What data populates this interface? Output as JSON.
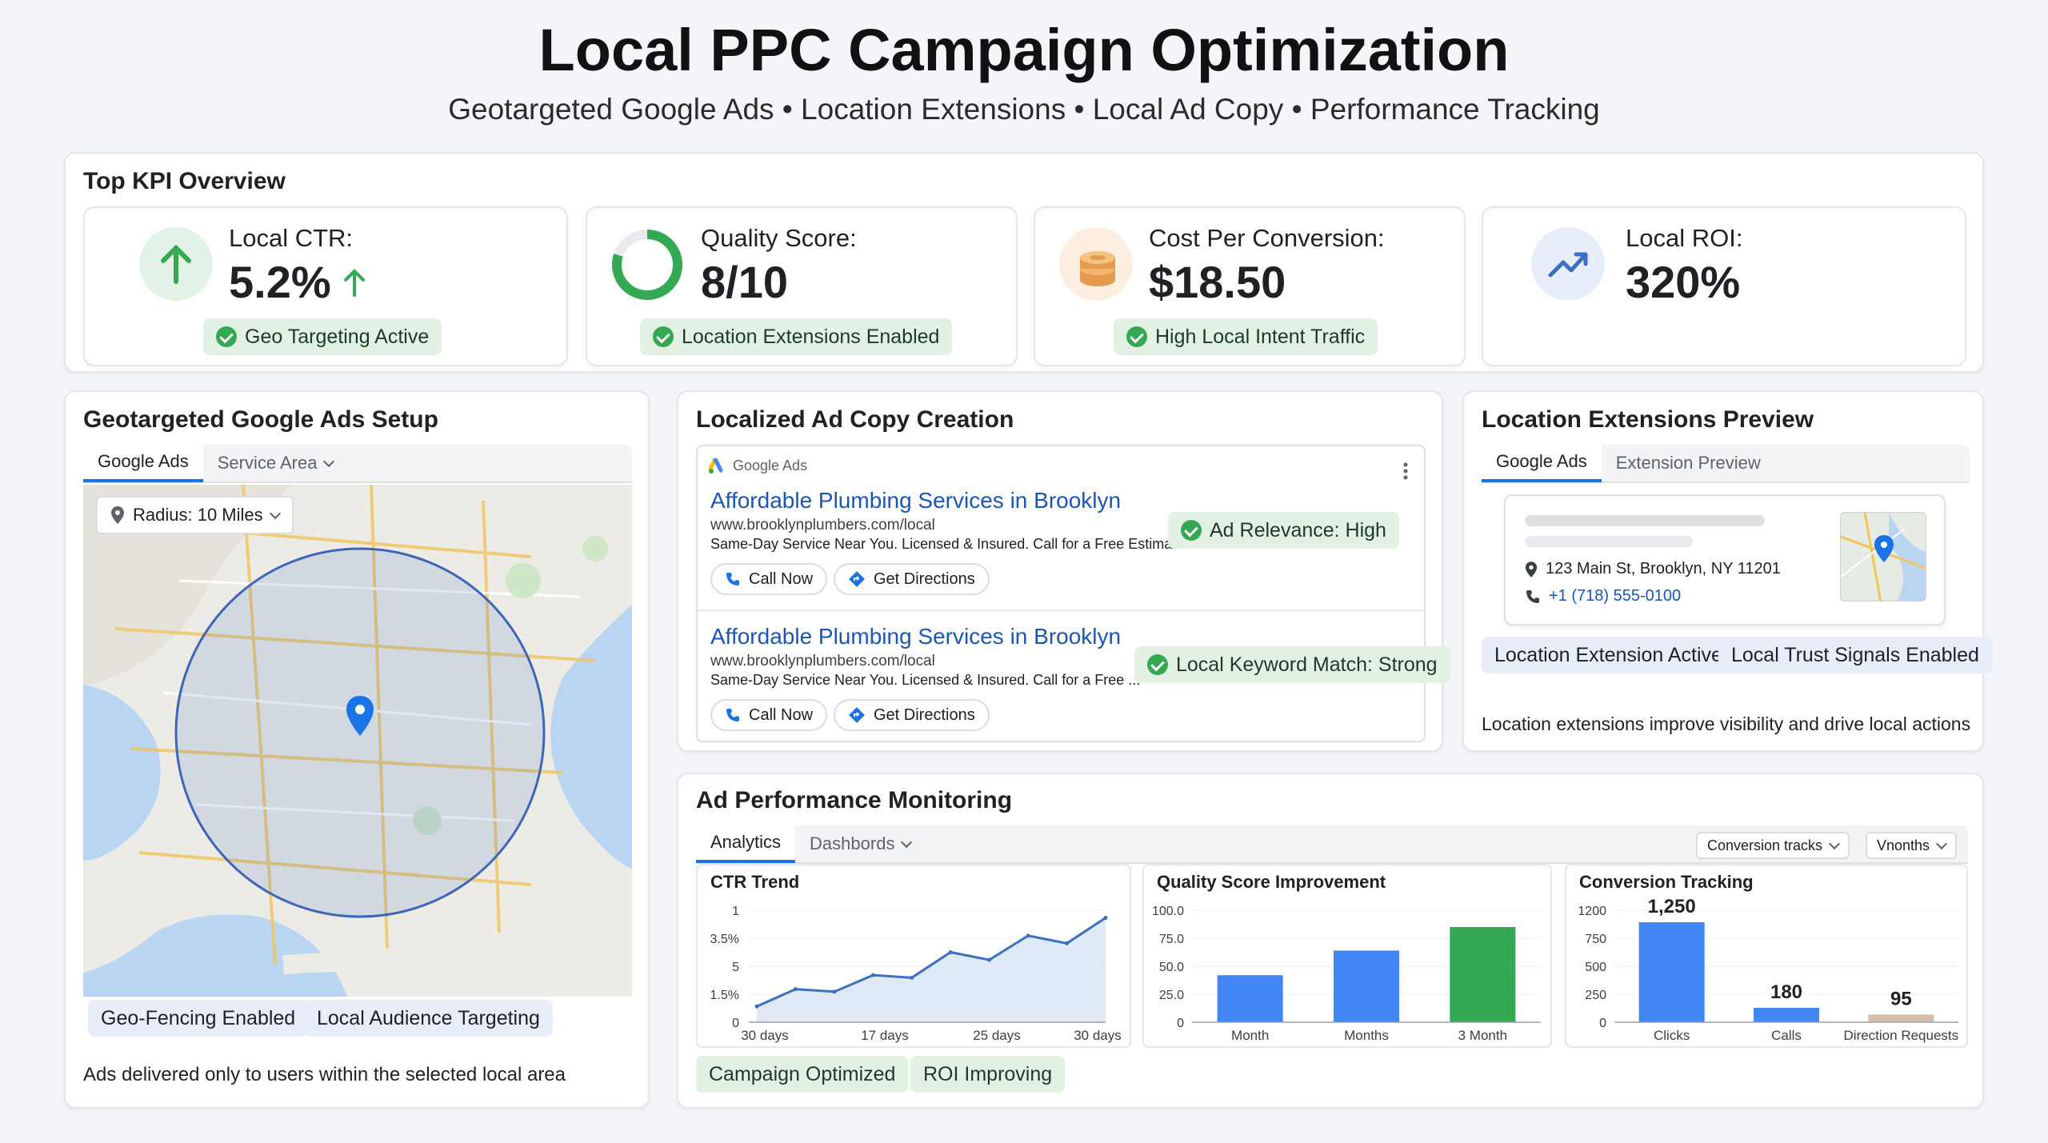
{
  "header": {
    "title": "Local PPC Campaign Optimization",
    "subtitle": "Geotargeted Google Ads • Location Extensions • Local Ad Copy • Performance Tracking"
  },
  "kpi": {
    "section_title": "Top KPI Overview",
    "cards": [
      {
        "label": "Local CTR:",
        "value": "5.2%",
        "badge": "Geo Targeting Active"
      },
      {
        "label": "Quality Score:",
        "value": "8/10",
        "badge": "Location Extensions Enabled",
        "score_fraction": 0.8
      },
      {
        "label": "Cost Per Conversion:",
        "value": "$18.50",
        "badge": "High Local Intent Traffic"
      },
      {
        "label": "Local ROI:",
        "value": "320%"
      }
    ]
  },
  "geo": {
    "title": "Geotargeted Google Ads Setup",
    "tabs": [
      "Google Ads",
      "Service Area"
    ],
    "radius_label": "Radius: 10 Miles",
    "badges": [
      "Geo-Fencing Enabled",
      "Local Audience Targeting"
    ],
    "caption": "Ads delivered only to users within the selected local area"
  },
  "adcopy": {
    "title": "Localized Ad Copy Creation",
    "brand": "Google Ads",
    "ads": [
      {
        "headline": "Affordable Plumbing Services in Brooklyn",
        "url": "www.brooklynplumbers.com/local",
        "desc": "Same-Day Service Near You. Licensed & Insured. Call for a Free Estimate!",
        "badge": "Ad Relevance: High",
        "btn1": "Call Now",
        "btn2": "Get Directions"
      },
      {
        "headline": "Affordable Plumbing Services in Brooklyn",
        "url": "www.brooklynplumbers.com/local",
        "desc": "Same-Day Service Near You. Licensed & Insured. Call for a Free ...",
        "badge": "Local Keyword Match: Strong",
        "btn1": "Call Now",
        "btn2": "Get Directions"
      }
    ]
  },
  "locext": {
    "title": "Location Extensions Preview",
    "tabs": [
      "Google Ads",
      "Extension Preview"
    ],
    "address": "123 Main St, Brooklyn, NY 11201",
    "phone": "+1 (718) 555-0100",
    "badges": [
      "Location Extension Active",
      "Local Trust Signals Enabled"
    ],
    "caption": "Location extensions improve visibility and drive local actions"
  },
  "perf": {
    "title": "Ad Performance Monitoring",
    "tabs": [
      "Analytics",
      "Dashbords"
    ],
    "filter1": "Conversion tracks",
    "filter2": "Vnonths",
    "badges": [
      "Campaign Optimized",
      "ROI Improving"
    ]
  },
  "colors": {
    "green": "#34a853",
    "blue": "#1a73e8",
    "bar_blue": "#4285f4",
    "tan": "#d4bfa8"
  },
  "chart_data": [
    {
      "type": "area",
      "title": "CTR Trend",
      "y_tick_labels": [
        "1",
        "3.5%",
        "5",
        "1.5%",
        "0"
      ],
      "x_tick_labels": [
        "30 days",
        "17 days",
        "25 days",
        "30 days"
      ],
      "values": [
        0.62,
        1.3,
        1.2,
        1.85,
        1.75,
        2.75,
        2.45,
        3.4,
        3.1,
        4.1
      ]
    },
    {
      "type": "bar",
      "title": "Quality Score Improvement",
      "categories": [
        "Month",
        "Months",
        "3 Month"
      ],
      "values": [
        42,
        64,
        85
      ],
      "y_tick_labels": [
        "100.0",
        "75.0",
        "50.0",
        "25.0",
        "0"
      ],
      "ylim": [
        0,
        100
      ]
    },
    {
      "type": "bar",
      "title": "Conversion Tracking",
      "categories": [
        "Clicks",
        "Calls",
        "Direction Requests"
      ],
      "values": [
        1250,
        180,
        95
      ],
      "value_labels": [
        "1,250",
        "180",
        "95"
      ],
      "y_tick_labels": [
        "1200",
        "750",
        "500",
        "250",
        "0"
      ]
    }
  ]
}
